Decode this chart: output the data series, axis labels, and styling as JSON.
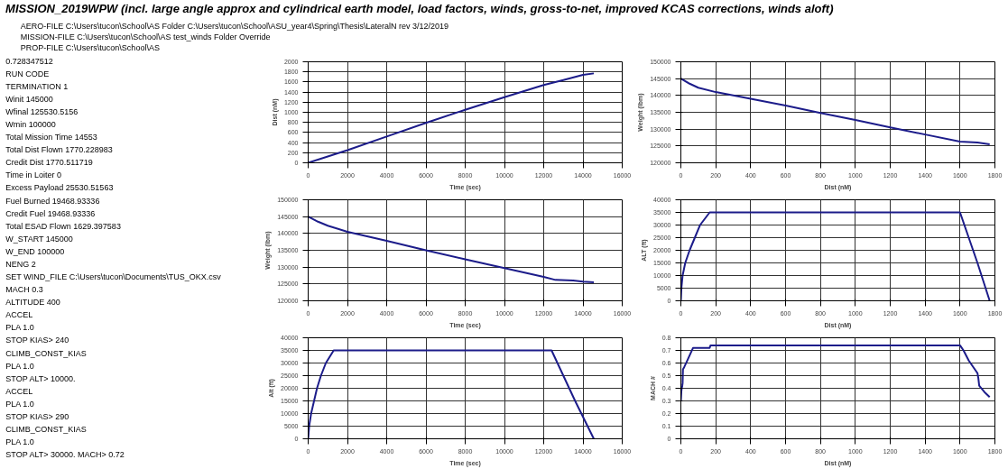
{
  "chart_data": [
    {
      "type": "other",
      "title": "MISSION_2019WPW (incl. large angle approx and cylindrical earth model, load factors, winds, gross-to-net, improved KCAS corrections, winds aloft)",
      "annotations": [
        "AERO-FILE   C:\\Users\\tucon\\School\\AS   Folder   C:\\Users\\tucon\\School\\ASU_year4\\Spring\\Thesis\\LateralN rev 3/12/2019",
        "MISSION-FILE   C:\\Users\\tucon\\School\\AS   test_winds   Folder Override",
        "PROP-FILE   C:\\Users\\tucon\\School\\AS"
      ]
    },
    {
      "type": "other",
      "annotations": [
        "0.728347512",
        "RUN CODE",
        "TERMINATION   1",
        "Winit   145000",
        "Wfinal   125530.5156",
        "Wmin   100000",
        "Total Mission Time   14553",
        "Total Dist Flown   1770.228983",
        "Credit Dist   1770.511719",
        "Time in Loiter   0",
        "Excess Payload   25530.51563",
        "Fuel Burned   19468.93336",
        "Credit Fuel   19468.93336",
        "Total ESAD Flown   1629.397583",
        "W_START  145000",
        "W_END   100000",
        "NENG   2",
        "SET WIND_FILE C:\\Users\\tucon\\Documents\\TUS_OKX.csv",
        "MACH 0.3",
        "ALTITUDE  400",
        "ACCEL",
        "PLA 1.0",
        "STOP KIAS> 240",
        "CLIMB_CONST_KIAS",
        "PLA 1.0",
        "STOP ALT> 10000.",
        "ACCEL",
        "PLA 1.0",
        "STOP KIAS> 290",
        "CLIMB_CONST_KIAS",
        "PLA 1.0",
        "STOP ALT> 30000. MACH> 0.72"
      ]
    },
    {
      "type": "line",
      "xlabel": "Time (sec)",
      "ylabel": "Dist (nM)",
      "xlim": [
        0,
        16000
      ],
      "xticks": [
        0,
        2000,
        4000,
        6000,
        8000,
        10000,
        12000,
        14000,
        16000
      ],
      "ylim": [
        0,
        2000
      ],
      "yticks": [
        0,
        200,
        400,
        600,
        800,
        1000,
        1200,
        1400,
        1600,
        1800,
        2000
      ],
      "grid": true,
      "x": [
        0,
        2000,
        4000,
        6000,
        8000,
        10000,
        12000,
        13000,
        14000,
        14553
      ],
      "series": [
        {
          "color": "#1c1c8a",
          "values": [
            0,
            250,
            520,
            790,
            1050,
            1300,
            1540,
            1640,
            1740,
            1770
          ]
        }
      ]
    },
    {
      "type": "line",
      "xlabel": "Dist (nM)",
      "ylabel": "Weight (lbm)",
      "xlim": [
        0,
        1800
      ],
      "xticks": [
        0,
        200,
        400,
        600,
        800,
        1000,
        1200,
        1400,
        1600,
        1800
      ],
      "ylim": [
        120000,
        150000
      ],
      "yticks": [
        120000,
        125000,
        130000,
        135000,
        140000,
        145000,
        150000
      ],
      "grid": true,
      "x": [
        0,
        50,
        100,
        200,
        400,
        600,
        800,
        1000,
        1200,
        1400,
        1600,
        1700,
        1770
      ],
      "series": [
        {
          "color": "#1c1c8a",
          "values": [
            145000,
            143500,
            142300,
            141000,
            139000,
            137000,
            134800,
            132700,
            130500,
            128400,
            126300,
            126000,
            125500
          ]
        }
      ]
    },
    {
      "type": "line",
      "xlabel": "Time (sec)",
      "ylabel": "Weight (lbm)",
      "xlim": [
        0,
        16000
      ],
      "xticks": [
        0,
        2000,
        4000,
        6000,
        8000,
        10000,
        12000,
        14000,
        16000
      ],
      "ylim": [
        120000,
        150000
      ],
      "yticks": [
        120000,
        125000,
        130000,
        135000,
        140000,
        145000,
        150000
      ],
      "grid": true,
      "x": [
        0,
        500,
        1000,
        2000,
        4000,
        6000,
        8000,
        10000,
        12000,
        12600,
        13500,
        14000,
        14553
      ],
      "series": [
        {
          "color": "#1c1c8a",
          "values": [
            145000,
            143500,
            142300,
            140500,
            137800,
            135000,
            132300,
            129700,
            127100,
            126200,
            126000,
            125700,
            125500
          ]
        }
      ]
    },
    {
      "type": "line",
      "xlabel": "Dist (nM)",
      "ylabel": "ALT (ft)",
      "xlim": [
        0,
        1800
      ],
      "xticks": [
        0,
        200,
        400,
        600,
        800,
        1000,
        1200,
        1400,
        1600,
        1800
      ],
      "ylim": [
        0,
        40000
      ],
      "yticks": [
        0,
        5000,
        10000,
        15000,
        20000,
        25000,
        30000,
        35000,
        40000
      ],
      "grid": true,
      "x": [
        0,
        3,
        10,
        25,
        50,
        80,
        110,
        165,
        1600,
        1650,
        1700,
        1770
      ],
      "series": [
        {
          "color": "#1c1c8a",
          "values": [
            0,
            5000,
            10000,
            15000,
            20000,
            25000,
            30000,
            35000,
            35000,
            25000,
            15000,
            0
          ]
        }
      ]
    },
    {
      "type": "line",
      "xlabel": "Time (sec)",
      "ylabel": "Alt (ft)",
      "xlim": [
        0,
        16000
      ],
      "xticks": [
        0,
        2000,
        4000,
        6000,
        8000,
        10000,
        12000,
        14000,
        16000
      ],
      "ylim": [
        0,
        40000
      ],
      "yticks": [
        0,
        5000,
        10000,
        15000,
        20000,
        25000,
        30000,
        35000,
        40000
      ],
      "grid": true,
      "x": [
        0,
        50,
        150,
        300,
        450,
        650,
        900,
        1300,
        12400,
        13000,
        13600,
        14553
      ],
      "series": [
        {
          "color": "#1c1c8a",
          "values": [
            0,
            5000,
            10000,
            15000,
            20000,
            25000,
            30000,
            35000,
            35000,
            25000,
            15000,
            0
          ]
        }
      ]
    },
    {
      "type": "line",
      "xlabel": "Dist (nM)",
      "ylabel": "MACH #",
      "xlim": [
        0,
        1800
      ],
      "xticks": [
        0,
        200,
        400,
        600,
        800,
        1000,
        1200,
        1400,
        1600,
        1800
      ],
      "ylim": [
        0,
        0.8
      ],
      "yticks": [
        0,
        0.1,
        0.2,
        0.3,
        0.4,
        0.5,
        0.6,
        0.7,
        0.8
      ],
      "grid": true,
      "x": [
        0,
        3,
        5,
        8,
        10,
        12,
        20,
        40,
        60,
        70,
        165,
        170,
        1600,
        1620,
        1650,
        1700,
        1705,
        1710,
        1740,
        1770
      ],
      "series": [
        {
          "color": "#1c1c8a",
          "values": [
            0.3,
            0.38,
            0.4,
            0.42,
            0.44,
            0.55,
            0.57,
            0.63,
            0.69,
            0.72,
            0.72,
            0.74,
            0.74,
            0.7,
            0.62,
            0.52,
            0.48,
            0.42,
            0.37,
            0.33
          ]
        }
      ]
    }
  ]
}
